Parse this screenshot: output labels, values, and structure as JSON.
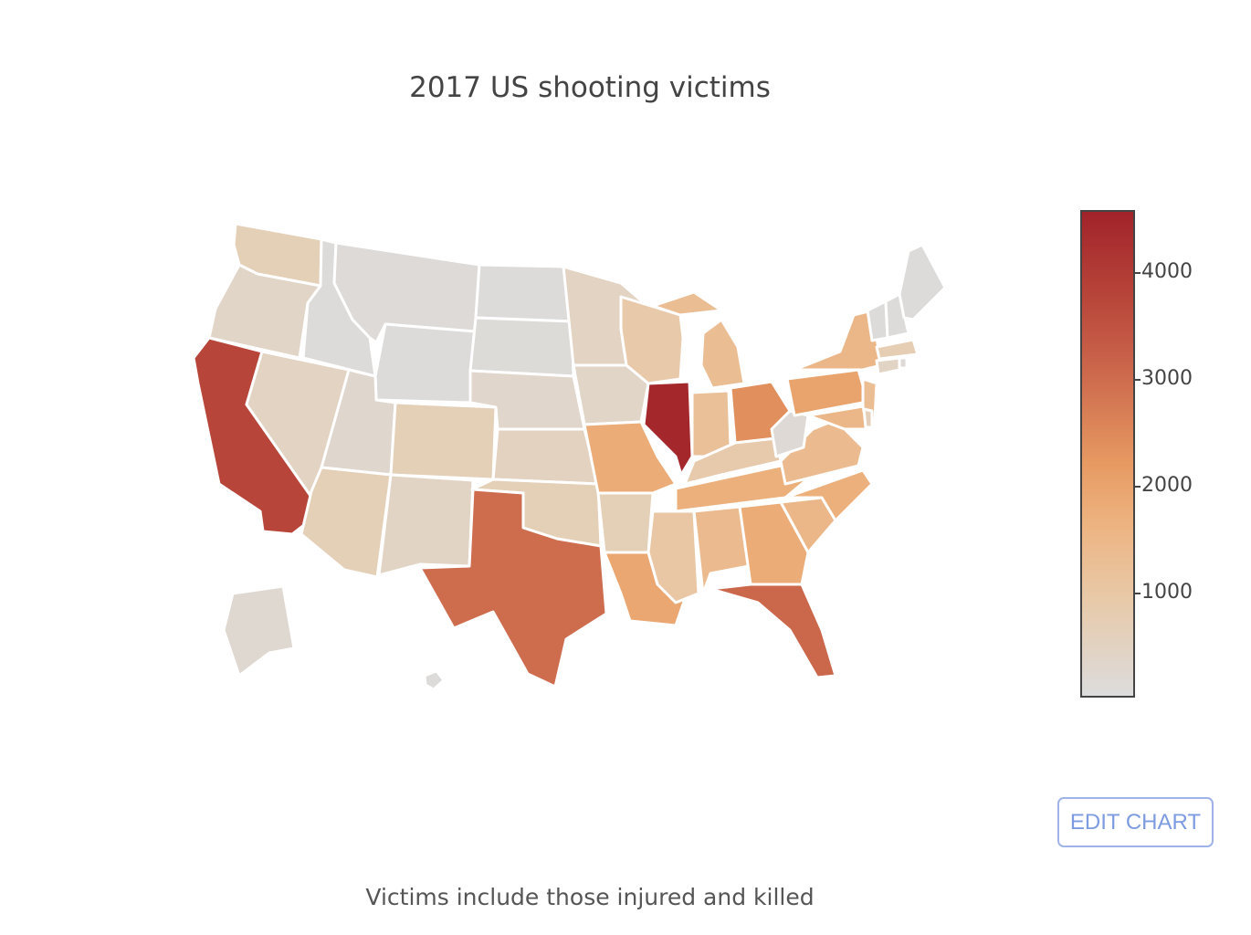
{
  "chart": {
    "title": "2017 US shooting victims",
    "caption": "Victims include those injured and killed",
    "edit_button": "EDIT CHART"
  },
  "colors": {
    "scale_low": "#dcdcdc",
    "scale_mid": "#e79a62",
    "scale_high": "#a1232a",
    "edit_button": "#7d9be0",
    "state_border": "#ffffff"
  },
  "chart_data": {
    "type": "choropleth",
    "title": "2017 US shooting victims",
    "colorbar": {
      "range": [
        0,
        4600
      ],
      "tick_values": [
        1000,
        2000,
        3000,
        4000
      ],
      "tick_labels": [
        "1000",
        "2000",
        "3000",
        "4000"
      ]
    },
    "regions": [
      {
        "state": "WA",
        "value": 650
      },
      {
        "state": "OR",
        "value": 350
      },
      {
        "state": "CA",
        "value": 3800
      },
      {
        "state": "NV",
        "value": 450
      },
      {
        "state": "ID",
        "value": 60
      },
      {
        "state": "MT",
        "value": 80
      },
      {
        "state": "WY",
        "value": 40
      },
      {
        "state": "UT",
        "value": 250
      },
      {
        "state": "AZ",
        "value": 650
      },
      {
        "state": "CO",
        "value": 650
      },
      {
        "state": "NM",
        "value": 400
      },
      {
        "state": "ND",
        "value": 60
      },
      {
        "state": "SD",
        "value": 70
      },
      {
        "state": "NE",
        "value": 300
      },
      {
        "state": "KS",
        "value": 500
      },
      {
        "state": "OK",
        "value": 650
      },
      {
        "state": "TX",
        "value": 3000
      },
      {
        "state": "MN",
        "value": 450
      },
      {
        "state": "IA",
        "value": 350
      },
      {
        "state": "MO",
        "value": 1800
      },
      {
        "state": "AR",
        "value": 650
      },
      {
        "state": "LA",
        "value": 1900
      },
      {
        "state": "WI",
        "value": 900
      },
      {
        "state": "IL",
        "value": 4500
      },
      {
        "state": "MI",
        "value": 1300
      },
      {
        "state": "IN",
        "value": 1200
      },
      {
        "state": "OH",
        "value": 2400
      },
      {
        "state": "KY",
        "value": 850
      },
      {
        "state": "TN",
        "value": 1700
      },
      {
        "state": "MS",
        "value": 1000
      },
      {
        "state": "AL",
        "value": 1400
      },
      {
        "state": "GA",
        "value": 1800
      },
      {
        "state": "FL",
        "value": 3100
      },
      {
        "state": "SC",
        "value": 1500
      },
      {
        "state": "NC",
        "value": 1700
      },
      {
        "state": "VA",
        "value": 1400
      },
      {
        "state": "WV",
        "value": 150
      },
      {
        "state": "PA",
        "value": 2000
      },
      {
        "state": "NY",
        "value": 1500
      },
      {
        "state": "NJ",
        "value": 1300
      },
      {
        "state": "MD",
        "value": 1500
      },
      {
        "state": "DE",
        "value": 600
      },
      {
        "state": "CT",
        "value": 400
      },
      {
        "state": "RI",
        "value": 150
      },
      {
        "state": "MA",
        "value": 700
      },
      {
        "state": "VT",
        "value": 30
      },
      {
        "state": "NH",
        "value": 40
      },
      {
        "state": "ME",
        "value": 50
      },
      {
        "state": "AK",
        "value": 200
      },
      {
        "state": "HI",
        "value": 60
      }
    ]
  }
}
